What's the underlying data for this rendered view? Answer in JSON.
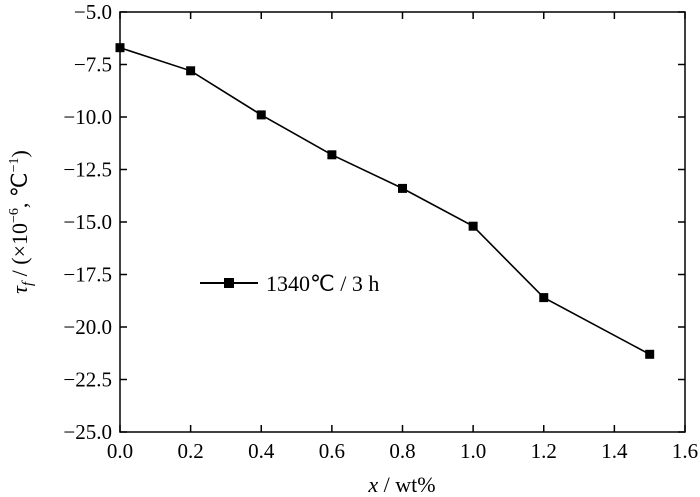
{
  "chart_data": {
    "type": "line",
    "x": [
      0.0,
      0.2,
      0.4,
      0.6,
      0.8,
      1.0,
      1.2,
      1.5
    ],
    "series": [
      {
        "name": "1340℃ / 3 h",
        "values": [
          -6.7,
          -7.8,
          -9.9,
          -11.8,
          -13.4,
          -15.2,
          -18.6,
          -21.3
        ],
        "color": "#000000",
        "marker": "square"
      }
    ],
    "xlabel": "x / wt%",
    "ylabel": "τf / (×10⁻⁶, ℃⁻¹)",
    "xlim": [
      0.0,
      1.6
    ],
    "ylim": [
      -25.0,
      -5.0
    ],
    "xticks": [
      0.0,
      0.2,
      0.4,
      0.6,
      0.8,
      1.0,
      1.2,
      1.4,
      1.6
    ],
    "xtick_labels": [
      "0.0",
      "0.2",
      "0.4",
      "0.6",
      "0.8",
      "1.0",
      "1.2",
      "1.4",
      "1.6"
    ],
    "yticks": [
      -5.0,
      -7.5,
      -10.0,
      -12.5,
      -15.0,
      -17.5,
      -20.0,
      -22.5,
      -25.0
    ],
    "ytick_labels": [
      "−5.0",
      "−7.5",
      "−10.0",
      "−12.5",
      "−15.0",
      "−17.5",
      "−20.0",
      "−22.5",
      "−25.0"
    ],
    "grid": false,
    "legend": "center-left"
  }
}
